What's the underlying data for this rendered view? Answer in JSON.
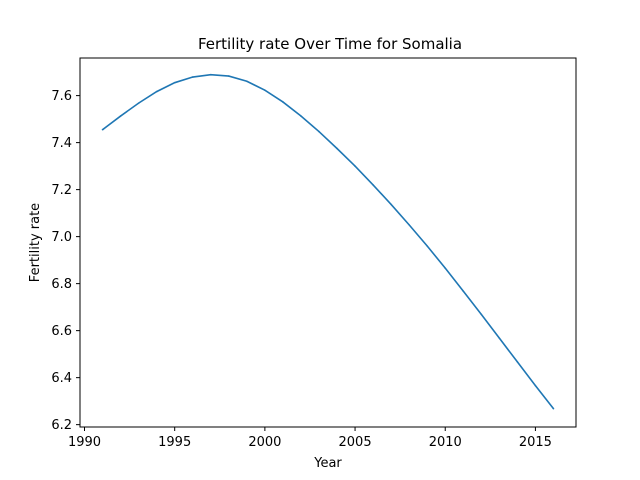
{
  "chart_data": {
    "type": "line",
    "title": "Fertility rate Over Time for Somalia",
    "xlabel": "Year",
    "ylabel": "Fertility rate",
    "xlim": [
      1989.75,
      2017.25
    ],
    "ylim": [
      6.19,
      7.76
    ],
    "xticks": [
      1990,
      1995,
      2000,
      2005,
      2010,
      2015
    ],
    "yticks": [
      6.2,
      6.4,
      6.6,
      6.8,
      7.0,
      7.2,
      7.4,
      7.6
    ],
    "grid": false,
    "line_color": "#1f77b4",
    "series": [
      {
        "x": [
          1991,
          1992,
          1993,
          1994,
          1995,
          1996,
          1997,
          1998,
          1999,
          2000,
          2001,
          2002,
          2003,
          2004,
          2005,
          2006,
          2007,
          2008,
          2009,
          2010,
          2011,
          2012,
          2013,
          2014,
          2015,
          2016
        ],
        "values": [
          7.455,
          7.513,
          7.568,
          7.617,
          7.655,
          7.679,
          7.689,
          7.683,
          7.661,
          7.623,
          7.573,
          7.513,
          7.447,
          7.375,
          7.3,
          7.22,
          7.137,
          7.05,
          6.96,
          6.866,
          6.768,
          6.669,
          6.568,
          6.467,
          6.366,
          6.268
        ]
      }
    ]
  }
}
